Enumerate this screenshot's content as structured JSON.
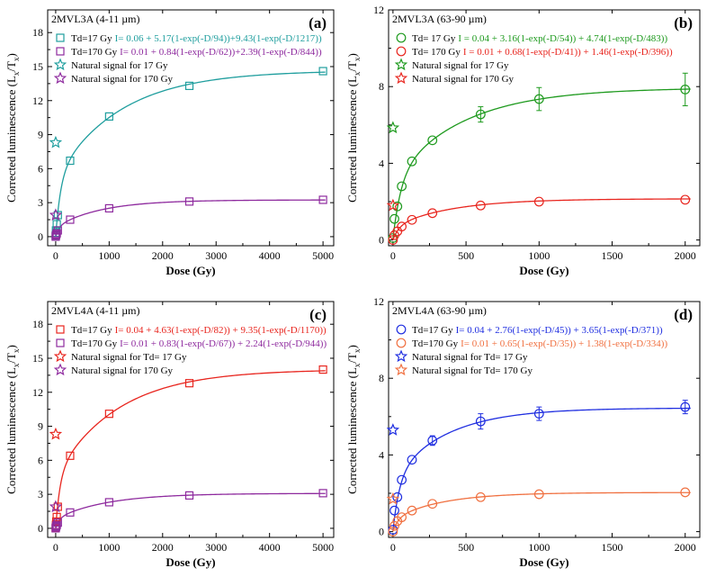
{
  "chart_data": [
    {
      "id": "a",
      "type": "scatter",
      "sample_label": "2MVL3A (4-11 µm)",
      "panel_label": "(a)",
      "xlabel": "Dose (Gy)",
      "ylabel": "Corrected luminescence (L",
      "ylabel_sub1": "x",
      "ylabel_mid": "/T",
      "ylabel_sub2": "x",
      "ylabel_end": ")",
      "xlim": [
        -150,
        5200
      ],
      "ylim": [
        -0.8,
        20
      ],
      "xticks": [
        0,
        1000,
        2000,
        3000,
        4000,
        5000
      ],
      "yticks": [
        0,
        3,
        6,
        9,
        12,
        15,
        18
      ],
      "series": [
        {
          "name": "Td=17 Gy",
          "equation": "I= 0.06 + 5.17(1-exp(-D/94))+9.43(1-exp(-D/1217))",
          "color": "#1f9e9e",
          "marker": "square",
          "fit": {
            "c": 0.06,
            "a1": 5.17,
            "d1": 94,
            "a2": 9.43,
            "d2": 1217
          },
          "x": [
            0,
            5,
            10,
            20,
            40,
            270,
            1000,
            2500,
            5000
          ],
          "y": [
            0.1,
            0.55,
            0.35,
            1.1,
            1.9,
            6.7,
            10.6,
            13.3,
            14.6
          ]
        },
        {
          "name": "Td=170 Gy",
          "equation": "I= 0.01 + 0.84(1-exp(-D/62))+2.39(1-exp(-D/844))",
          "color": "#8e2a9e",
          "marker": "square",
          "fit": {
            "c": 0.01,
            "a1": 0.84,
            "d1": 62,
            "a2": 2.39,
            "d2": 844
          },
          "x": [
            0,
            5,
            10,
            20,
            40,
            270,
            1000,
            2500,
            5000
          ],
          "y": [
            0.0,
            0.1,
            0.2,
            0.3,
            0.55,
            1.5,
            2.5,
            3.1,
            3.25
          ]
        }
      ],
      "natural": [
        {
          "name": "Natural signal for 17 Gy",
          "color": "#1f9e9e",
          "x": 0,
          "y": 8.3
        },
        {
          "name": "Natural signal for 170 Gy",
          "color": "#8e2a9e",
          "x": 0,
          "y": 1.9
        }
      ]
    },
    {
      "id": "b",
      "type": "scatter",
      "sample_label": "2MVL3A (63-90 µm)",
      "panel_label": "(b)",
      "xlabel": "Dose (Gy)",
      "ylabel": "Corrected luminescence (L",
      "ylabel_sub1": "x",
      "ylabel_mid": "/T",
      "ylabel_sub2": "x",
      "ylabel_end": ")",
      "xlim": [
        -30,
        2100
      ],
      "ylim": [
        -0.3,
        12
      ],
      "xticks": [
        0,
        500,
        1000,
        1500,
        2000
      ],
      "yticks": [
        0,
        4,
        8,
        12
      ],
      "series": [
        {
          "name": "Td= 17 Gy",
          "equation": "I = 0.04 + 3.16(1-exp(-D/54)) + 4.74(1-exp(-D/483))",
          "color": "#1e9a1e",
          "marker": "circle",
          "fit": {
            "c": 0.04,
            "a1": 3.16,
            "d1": 54,
            "a2": 4.74,
            "d2": 483
          },
          "x": [
            0,
            10,
            30,
            60,
            130,
            270,
            600,
            1000,
            2000
          ],
          "y": [
            0.1,
            1.1,
            1.75,
            2.8,
            4.1,
            5.2,
            6.55,
            7.35,
            7.85
          ],
          "err": [
            0,
            0,
            0,
            0,
            0,
            0,
            0.4,
            0.6,
            0.85
          ]
        },
        {
          "name": "Td= 170 Gy",
          "equation": "I = 0.01 + 0.68(1-exp(-D/41)) + 1.46(1-exp(-D/396))",
          "color": "#e8251e",
          "marker": "circle",
          "fit": {
            "c": 0.01,
            "a1": 0.68,
            "d1": 41,
            "a2": 1.46,
            "d2": 396
          },
          "x": [
            0,
            10,
            30,
            60,
            130,
            270,
            600,
            1000,
            2000
          ],
          "y": [
            0.0,
            0.25,
            0.45,
            0.7,
            1.05,
            1.4,
            1.8,
            2.0,
            2.1
          ],
          "err": [
            0,
            0,
            0,
            0,
            0,
            0,
            0,
            0,
            0
          ]
        }
      ],
      "natural": [
        {
          "name": "Natural signal for 17 Gy",
          "color": "#1e9a1e",
          "x": 0,
          "y": 5.85
        },
        {
          "name": "Natural signal for 170 Gy",
          "color": "#e8251e",
          "x": 0,
          "y": 1.8
        }
      ]
    },
    {
      "id": "c",
      "type": "scatter",
      "sample_label": "2MVL4A (4-11 µm)",
      "panel_label": "(c)",
      "xlabel": "Dose (Gy)",
      "ylabel": "Corrected luminescence (L",
      "ylabel_sub1": "x",
      "ylabel_mid": "/T",
      "ylabel_sub2": "x",
      "ylabel_end": ")",
      "xlim": [
        -150,
        5200
      ],
      "ylim": [
        -0.8,
        20
      ],
      "xticks": [
        0,
        1000,
        2000,
        3000,
        4000,
        5000
      ],
      "yticks": [
        0,
        3,
        6,
        9,
        12,
        15,
        18
      ],
      "series": [
        {
          "name": "Td=17 Gy",
          "equation": "I= 0.04 + 4.63(1-exp(-D/82)) + 9.35(1-exp(-D/1170))",
          "color": "#e8251e",
          "marker": "square",
          "fit": {
            "c": 0.04,
            "a1": 4.63,
            "d1": 82,
            "a2": 9.35,
            "d2": 1170
          },
          "x": [
            0,
            5,
            10,
            20,
            40,
            270,
            1000,
            2500,
            5000
          ],
          "y": [
            0.05,
            0.3,
            0.6,
            1.0,
            1.9,
            6.4,
            10.1,
            12.8,
            14.0
          ]
        },
        {
          "name": "Td=170 Gy",
          "equation": "I= 0.01 + 0.83(1-exp(-D/67)) + 2.24(1-exp(-D/944))",
          "color": "#8e2a9e",
          "marker": "square",
          "fit": {
            "c": 0.01,
            "a1": 0.83,
            "d1": 67,
            "a2": 2.24,
            "d2": 944
          },
          "x": [
            0,
            5,
            10,
            20,
            40,
            270,
            1000,
            2500,
            5000
          ],
          "y": [
            0.0,
            0.1,
            0.2,
            0.3,
            0.5,
            1.4,
            2.3,
            2.9,
            3.1
          ]
        }
      ],
      "natural": [
        {
          "name": "Natural signal for Td= 17 Gy",
          "color": "#e8251e",
          "x": 0,
          "y": 8.3
        },
        {
          "name": "Natural signal for 170 Gy",
          "color": "#8e2a9e",
          "x": 0,
          "y": 1.9
        }
      ]
    },
    {
      "id": "d",
      "type": "scatter",
      "sample_label": "2MVL4A (63-90 µm)",
      "panel_label": "(d)",
      "xlabel": "Dose (Gy)",
      "ylabel": "Corrected luminescence (L",
      "ylabel_sub1": "x",
      "ylabel_mid": "/T",
      "ylabel_sub2": "x",
      "ylabel_end": ")",
      "xlim": [
        -30,
        2100
      ],
      "ylim": [
        -0.3,
        12
      ],
      "xticks": [
        0,
        500,
        1000,
        1500,
        2000
      ],
      "yticks": [
        0,
        4,
        8,
        12
      ],
      "series": [
        {
          "name": "Td=17 Gy",
          "equation": "I= 0.04 + 2.76(1-exp(-D/45)) + 3.65(1-exp(-D/371))",
          "color": "#1f2ee0",
          "marker": "circle",
          "fit": {
            "c": 0.04,
            "a1": 2.76,
            "d1": 45,
            "a2": 3.65,
            "d2": 371
          },
          "x": [
            0,
            10,
            30,
            60,
            130,
            270,
            600,
            1000,
            2000
          ],
          "y": [
            0.1,
            1.1,
            1.8,
            2.7,
            3.75,
            4.75,
            5.75,
            6.15,
            6.5
          ],
          "err": [
            0,
            0,
            0,
            0,
            0,
            0.25,
            0.4,
            0.35,
            0.35
          ]
        },
        {
          "name": "Td=170 Gy",
          "equation": "I= 0.01 + 0.65(1-exp(-D/35)) + 1.38(1-exp(-D/334))",
          "color": "#f07040",
          "marker": "circle",
          "fit": {
            "c": 0.01,
            "a1": 0.65,
            "d1": 35,
            "a2": 1.38,
            "d2": 334
          },
          "x": [
            0,
            10,
            30,
            60,
            130,
            270,
            600,
            1000,
            2000
          ],
          "y": [
            0.0,
            0.3,
            0.55,
            0.75,
            1.1,
            1.45,
            1.8,
            1.95,
            2.05
          ],
          "err": [
            0,
            0,
            0,
            0,
            0,
            0,
            0,
            0,
            0
          ]
        }
      ],
      "natural": [
        {
          "name": "Natural signal for Td= 17 Gy",
          "color": "#1f2ee0",
          "x": 0,
          "y": 5.3
        },
        {
          "name": "Natural signal for Td= 170 Gy",
          "color": "#f07040",
          "x": 0,
          "y": 1.7
        }
      ]
    }
  ]
}
